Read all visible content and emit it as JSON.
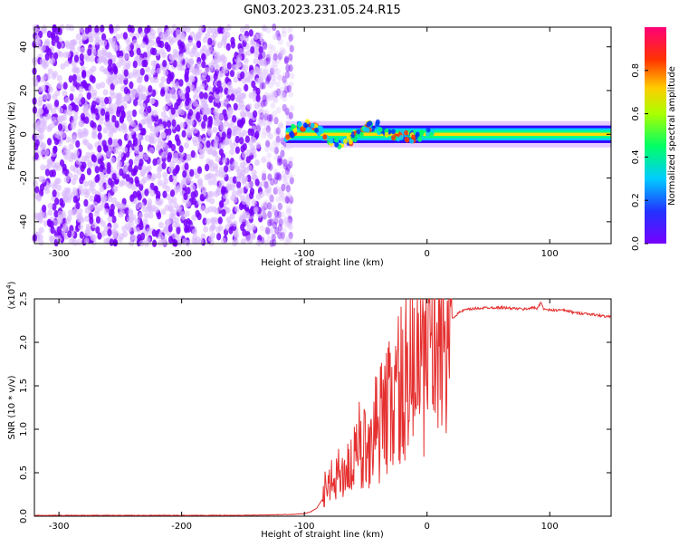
{
  "figure": {
    "title": "GN03.2023.231.05.24.R15",
    "colors": {
      "snr_line": "#e53030",
      "low_amplitude": "#7700ff",
      "scatter_light": "#d9b8ff",
      "axis": "#000000"
    }
  },
  "chart_data": [
    {
      "type": "heatmap",
      "xlabel": "Height of straight line (km)",
      "ylabel": "Frequency (Hz)",
      "xlim": [
        -320,
        150
      ],
      "ylim": [
        -50,
        49
      ],
      "xticks": [
        -300,
        -200,
        -100,
        0,
        100
      ],
      "xtick_labels": [
        "-300",
        "-200",
        "-100",
        "0",
        "100"
      ],
      "yticks": [
        -40,
        -20,
        0,
        20,
        40
      ],
      "ytick_labels": [
        "-40",
        "-20",
        "0",
        "20",
        "40"
      ],
      "colorbar": {
        "label": "Normalized spectral amplitude",
        "range": [
          0,
          1
        ],
        "ticks": [
          0.0,
          0.2,
          0.4,
          0.6,
          0.8
        ],
        "tick_labels": [
          "0.0",
          "0.2",
          "0.4",
          "0.6",
          "0.8"
        ],
        "colormap": "rainbow-purple-to-red"
      },
      "regions": [
        {
          "kind": "noise",
          "x_range": [
            -320,
            -110
          ],
          "freq_range": [
            -50,
            49
          ],
          "amplitude": 0.1
        },
        {
          "kind": "signal",
          "x_range": [
            -115,
            150
          ],
          "center_freq": 0,
          "half_width_hz": 4,
          "amplitude_peak": 1.0
        }
      ],
      "grid": false
    },
    {
      "type": "line",
      "xlabel": "Height of straight line (km)",
      "ylabel": "SNR (10 * v/v)",
      "yscale_note": "(x10",
      "yscale_exp": "4",
      "yscale_close": ")",
      "xlim": [
        -320,
        150
      ],
      "ylim": [
        0,
        2.5
      ],
      "xticks": [
        -300,
        -200,
        -100,
        0,
        100
      ],
      "xtick_labels": [
        "-300",
        "-200",
        "-100",
        "0",
        "100"
      ],
      "yticks": [
        0.0,
        0.5,
        1.0,
        1.5,
        2.0,
        2.5
      ],
      "ytick_labels": [
        "0.0",
        "0.5",
        "1.0",
        "1.5",
        "2.0",
        "2.5"
      ],
      "grid": false,
      "series": [
        {
          "x": [
            -320,
            -250,
            -200,
            -150,
            -110,
            -100,
            -95,
            -90,
            -85,
            -80,
            -75,
            -70,
            -65,
            -60,
            -55,
            -50,
            -45,
            -40,
            -35,
            -30,
            -25,
            -20,
            -15,
            -10,
            -5,
            0,
            5,
            10,
            15,
            20,
            25,
            30,
            35,
            40,
            50,
            60,
            70,
            80,
            85,
            90,
            93,
            95,
            100,
            110,
            115,
            120,
            130,
            140,
            150
          ],
          "y": [
            0.01,
            0.01,
            0.01,
            0.01,
            0.02,
            0.03,
            0.05,
            0.09,
            0.2,
            0.35,
            0.45,
            0.5,
            0.55,
            0.62,
            0.7,
            0.8,
            0.95,
            1.05,
            1.15,
            1.3,
            1.45,
            1.55,
            1.6,
            1.7,
            1.8,
            1.9,
            2.0,
            2.1,
            2.2,
            2.27,
            2.33,
            2.37,
            2.38,
            2.39,
            2.4,
            2.4,
            2.39,
            2.38,
            2.4,
            2.39,
            2.47,
            2.38,
            2.37,
            2.37,
            2.36,
            2.34,
            2.33,
            2.31,
            2.29
          ]
        }
      ]
    }
  ]
}
